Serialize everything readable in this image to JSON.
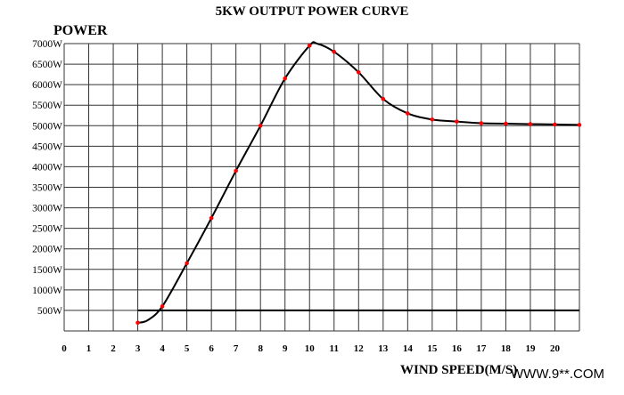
{
  "chart_data": {
    "type": "line",
    "title": "5KW OUTPUT POWER CURVE",
    "ylabel": "POWER",
    "xlabel": "WIND SPEED(M/S)",
    "watermark": "WWW.9**.COM",
    "xlim": [
      0,
      21
    ],
    "ylim": [
      0,
      7000
    ],
    "grid": true,
    "x_ticks": [
      "0",
      "1",
      "2",
      "3",
      "4",
      "5",
      "6",
      "7",
      "8",
      "9",
      "10",
      "11",
      "12",
      "13",
      "14",
      "15",
      "16",
      "17",
      "18",
      "19",
      "20"
    ],
    "y_ticks": [
      "500W",
      "1000W",
      "1500W",
      "2000W",
      "2500W",
      "3000W",
      "3500W",
      "4000W",
      "4500W",
      "5000W",
      "5500W",
      "6000W",
      "6500W",
      "7000W"
    ],
    "series": [
      {
        "color": "#000000",
        "x": [
          3,
          3.4,
          4,
          5,
          6,
          7,
          8,
          9,
          10,
          10.3,
          11,
          12,
          13,
          14,
          15,
          16,
          17,
          18,
          19,
          20,
          21
        ],
        "y": [
          200,
          260,
          600,
          1650,
          2750,
          3900,
          5000,
          6150,
          6950,
          7000,
          6800,
          6300,
          5650,
          5300,
          5150,
          5100,
          5060,
          5050,
          5040,
          5030,
          5020
        ]
      }
    ],
    "points": {
      "color": "#ff0000",
      "x": [
        3,
        4,
        5,
        6,
        7,
        8,
        9,
        10,
        11,
        12,
        13,
        14,
        15,
        16,
        17,
        18,
        19,
        20,
        21
      ],
      "y": [
        200,
        600,
        1650,
        2750,
        3900,
        5000,
        6150,
        6950,
        6800,
        6300,
        5650,
        5300,
        5150,
        5100,
        5060,
        5050,
        5040,
        5030,
        5020
      ]
    },
    "reference_line": {
      "y": 500,
      "x_start": 3,
      "x_end": 21
    }
  }
}
